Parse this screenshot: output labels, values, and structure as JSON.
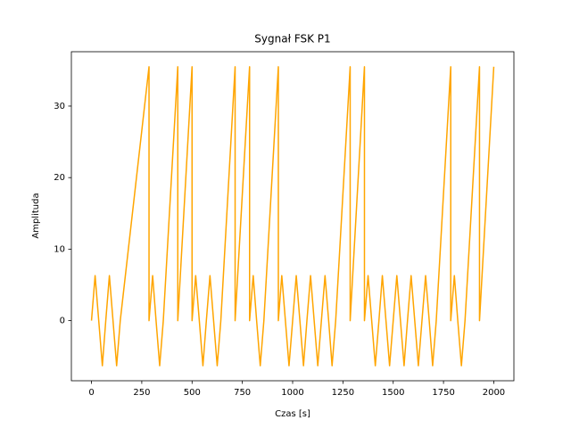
{
  "chart_data": {
    "type": "line",
    "title": "Sygnał FSK P1",
    "x_label": "Czas [s]",
    "y_label": "Amplituda",
    "color": "#ffa500",
    "x": [
      0,
      18,
      36,
      54,
      71,
      89,
      107,
      125,
      143,
      286,
      286,
      304,
      321,
      339,
      357,
      429,
      429,
      500,
      500,
      518,
      536,
      554,
      571,
      589,
      607,
      625,
      643,
      714,
      714,
      786,
      786,
      804,
      821,
      839,
      857,
      929,
      929,
      946,
      964,
      982,
      1000,
      1018,
      1036,
      1054,
      1071,
      1089,
      1107,
      1125,
      1143,
      1161,
      1179,
      1196,
      1214,
      1286,
      1286,
      1357,
      1357,
      1375,
      1393,
      1411,
      1429,
      1446,
      1464,
      1482,
      1500,
      1518,
      1536,
      1554,
      1571,
      1589,
      1607,
      1625,
      1643,
      1661,
      1679,
      1696,
      1714,
      1786,
      1786,
      1804,
      1821,
      1839,
      1857,
      1929,
      1929,
      2000
    ],
    "values": [
      0,
      6.3,
      0,
      -6.3,
      0,
      6.3,
      0,
      -6.3,
      0,
      35.5,
      0,
      6.3,
      0,
      -6.3,
      0,
      35.5,
      0,
      35.5,
      0,
      6.3,
      0,
      -6.3,
      0,
      6.3,
      0,
      -6.3,
      0,
      35.5,
      0,
      35.5,
      0,
      6.3,
      0,
      -6.3,
      0,
      35.5,
      0,
      6.3,
      0,
      -6.3,
      0,
      6.3,
      0,
      -6.3,
      0,
      6.3,
      0,
      -6.3,
      0,
      6.3,
      0,
      -6.3,
      0,
      35.5,
      0,
      35.5,
      0,
      6.3,
      0,
      -6.3,
      0,
      6.3,
      0,
      -6.3,
      0,
      6.3,
      0,
      -6.3,
      0,
      6.3,
      0,
      -6.3,
      0,
      6.3,
      0,
      -6.3,
      0,
      35.5,
      0,
      6.3,
      0,
      -6.3,
      0,
      35.5,
      0,
      35.5
    ],
    "xlim": [
      -100,
      2100
    ],
    "ylim": [
      -8.4,
      37.6
    ],
    "xticks": [
      0,
      250,
      500,
      750,
      1000,
      1250,
      1500,
      1750,
      2000
    ],
    "yticks": [
      0,
      10,
      20,
      30
    ]
  }
}
